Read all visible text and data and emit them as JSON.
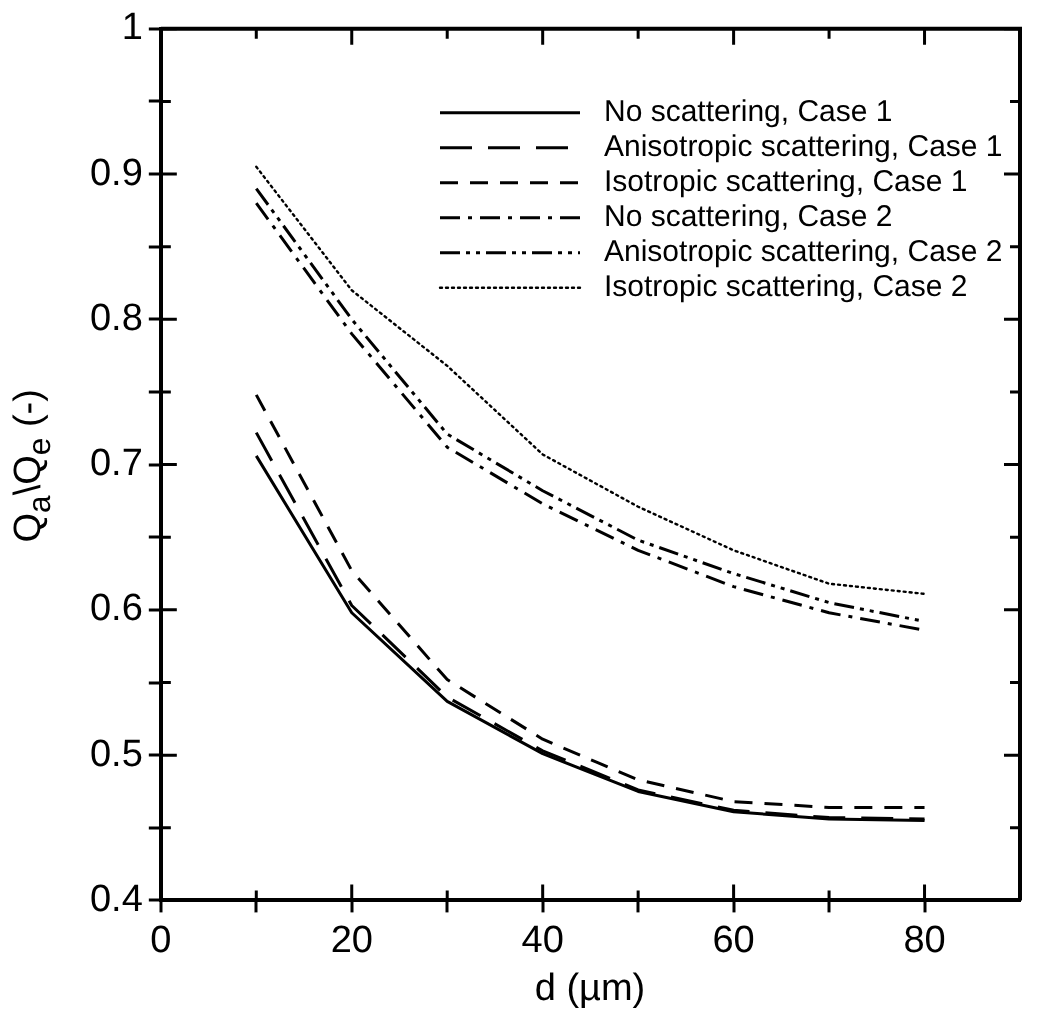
{
  "chart_data": {
    "type": "line",
    "xlabel": "d (µm)",
    "ylabel": "Q$_{a}$\\Q$_{e}$ (-)",
    "x": [
      10,
      20,
      30,
      40,
      50,
      60,
      70,
      80
    ],
    "xlim": [
      0,
      90
    ],
    "ylim": [
      0.4,
      1
    ],
    "xticks": [
      0,
      {
        "value": 10,
        "label": null
      },
      20,
      {
        "value": 30,
        "label": null
      },
      40,
      {
        "value": 50,
        "label": null
      },
      60,
      {
        "value": 70,
        "label": null
      },
      80
    ],
    "yticks": [
      0.4,
      {
        "value": 0.45,
        "label": null
      },
      0.5,
      {
        "value": 0.55,
        "label": null
      },
      0.6,
      {
        "value": 0.65,
        "label": null
      },
      0.7,
      {
        "value": 0.75,
        "label": null
      },
      0.8,
      {
        "value": 0.85,
        "label": null
      },
      0.9,
      {
        "value": 0.95,
        "label": null
      },
      1
    ],
    "grid": false,
    "legend": "top right",
    "marker": "none",
    "series": [
      {
        "name": "No scattering, Case 1",
        "color": "#000000",
        "line_style": "solid",
        "values": [
          0.706,
          0.598,
          0.537,
          0.501,
          0.475,
          0.461,
          0.456,
          0.455
        ]
      },
      {
        "name": "Anisotropic scattering, Case 1",
        "color": "#000000",
        "line_style": "longdash",
        "values": [
          0.722,
          0.603,
          0.54,
          0.503,
          0.476,
          0.462,
          0.457,
          0.456
        ]
      },
      {
        "name": "Isotropic scattering, Case 1",
        "color": "#000000",
        "line_style": "dashed",
        "values": [
          0.748,
          0.627,
          0.552,
          0.511,
          0.483,
          0.468,
          0.464,
          0.464
        ]
      },
      {
        "name": "No scattering, Case 2",
        "color": "#000000",
        "line_style": "dashdot",
        "values": [
          0.88,
          0.79,
          0.712,
          0.673,
          0.641,
          0.616,
          0.598,
          0.586
        ]
      },
      {
        "name": "Anisotropic scattering, Case 2",
        "color": "#000000",
        "line_style": "dashdotdot",
        "values": [
          0.89,
          0.8,
          0.721,
          0.682,
          0.648,
          0.625,
          0.605,
          0.592
        ]
      },
      {
        "name": "Isotropic scattering, Case 2",
        "color": "#000000",
        "line_style": "dotted",
        "values": [
          0.905,
          0.82,
          0.768,
          0.707,
          0.671,
          0.641,
          0.618,
          0.611
        ]
      }
    ]
  }
}
